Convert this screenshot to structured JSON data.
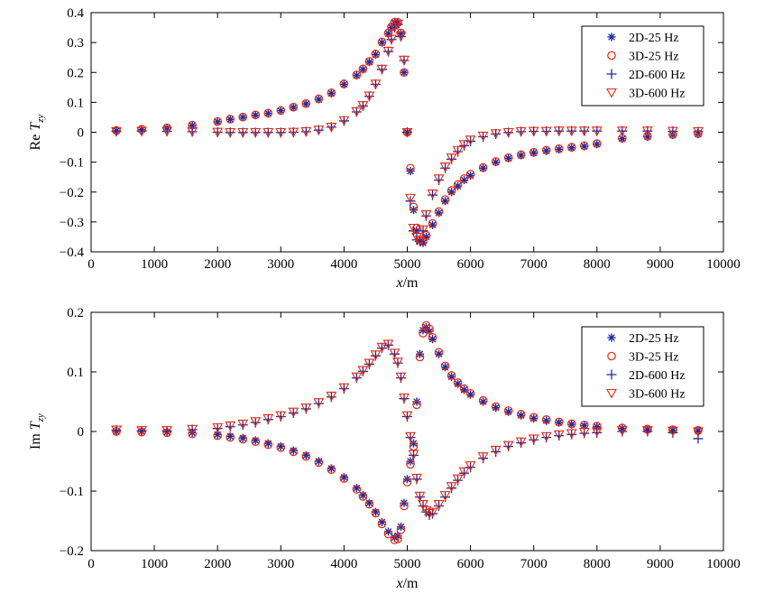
{
  "colors": {
    "blue": "#1f2d9e",
    "red": "#e8260f",
    "axis": "#000000"
  },
  "chart_data": [
    {
      "type": "scatter",
      "ylabel_main": "Re",
      "ylabel_sub": "zy",
      "xlabel_main": "x",
      "xlabel_unit": "/m",
      "xlim": [
        0,
        10000
      ],
      "ylim": [
        -0.4,
        0.4
      ],
      "xticks": [
        "0",
        "1000",
        "2000",
        "3000",
        "4000",
        "5000",
        "6000",
        "7000",
        "8000",
        "9000",
        "10000"
      ],
      "yticks": [
        "−0.4",
        "−0.3",
        "−0.2",
        "−0.1",
        "0",
        "0.1",
        "0.2",
        "0.3",
        "0.4"
      ],
      "legend_position": "top-right",
      "legend": [
        "2D-25 Hz",
        "3D-25 Hz",
        "2D-600 Hz",
        "3D-600 Hz"
      ],
      "x": [
        400,
        800,
        1200,
        1600,
        2000,
        2200,
        2400,
        2600,
        2800,
        3000,
        3200,
        3400,
        3600,
        3800,
        4000,
        4200,
        4300,
        4400,
        4500,
        4600,
        4700,
        4750,
        4800,
        4850,
        4900,
        4950,
        5000,
        5050,
        5100,
        5150,
        5200,
        5250,
        5300,
        5400,
        5500,
        5600,
        5700,
        5800,
        5900,
        6000,
        6200,
        6400,
        6600,
        6800,
        7000,
        7200,
        7400,
        7600,
        7800,
        8000,
        8400,
        8800,
        9200,
        9600
      ],
      "series": [
        {
          "name": "2D-25 Hz",
          "marker": "star",
          "color": "blue",
          "values": [
            0.005,
            0.009,
            0.014,
            0.022,
            0.035,
            0.043,
            0.05,
            0.057,
            0.063,
            0.072,
            0.083,
            0.095,
            0.11,
            0.13,
            0.16,
            0.19,
            0.21,
            0.235,
            0.26,
            0.3,
            0.33,
            0.35,
            0.365,
            0.365,
            0.33,
            0.2,
            0.0,
            -0.13,
            -0.26,
            -0.33,
            -0.365,
            -0.37,
            -0.35,
            -0.31,
            -0.27,
            -0.23,
            -0.2,
            -0.18,
            -0.16,
            -0.145,
            -0.12,
            -0.1,
            -0.087,
            -0.077,
            -0.069,
            -0.062,
            -0.057,
            -0.052,
            -0.047,
            -0.04,
            -0.022,
            -0.015,
            -0.009,
            -0.006
          ]
        },
        {
          "name": "3D-25 Hz",
          "marker": "circle",
          "color": "red",
          "values": [
            0.006,
            0.01,
            0.015,
            0.024,
            0.036,
            0.044,
            0.051,
            0.058,
            0.064,
            0.073,
            0.084,
            0.096,
            0.112,
            0.132,
            0.162,
            0.192,
            0.212,
            0.237,
            0.262,
            0.302,
            0.332,
            0.352,
            0.368,
            0.368,
            0.332,
            0.2,
            0.0,
            -0.12,
            -0.25,
            -0.32,
            -0.36,
            -0.365,
            -0.345,
            -0.305,
            -0.265,
            -0.225,
            -0.195,
            -0.175,
            -0.155,
            -0.14,
            -0.118,
            -0.098,
            -0.085,
            -0.075,
            -0.067,
            -0.06,
            -0.055,
            -0.05,
            -0.045,
            -0.038,
            -0.02,
            -0.013,
            -0.008,
            -0.005
          ]
        },
        {
          "name": "2D-600 Hz",
          "marker": "plus",
          "color": "blue",
          "values": [
            0.003,
            0.004,
            0.003,
            0.002,
            0.0,
            -0.001,
            -0.001,
            -0.001,
            -0.001,
            -0.001,
            0.0,
            0.002,
            0.007,
            0.017,
            0.038,
            0.068,
            0.088,
            0.12,
            0.16,
            0.21,
            0.27,
            0.31,
            0.35,
            0.36,
            0.32,
            0.24,
            0.0,
            -0.23,
            -0.33,
            -0.36,
            -0.365,
            -0.33,
            -0.28,
            -0.21,
            -0.16,
            -0.12,
            -0.09,
            -0.065,
            -0.045,
            -0.03,
            -0.015,
            -0.006,
            -0.001,
            0.002,
            0.003,
            0.003,
            0.004,
            0.004,
            0.004,
            0.004,
            0.004,
            0.004,
            0.003,
            0.002
          ]
        },
        {
          "name": "3D-600 Hz",
          "marker": "triangle-down",
          "color": "red",
          "values": [
            0.003,
            0.004,
            0.004,
            0.003,
            0.001,
            0.0,
            0.0,
            0.0,
            0.0,
            0.0,
            0.001,
            0.003,
            0.008,
            0.018,
            0.04,
            0.07,
            0.09,
            0.122,
            0.162,
            0.212,
            0.272,
            0.312,
            0.352,
            0.362,
            0.322,
            0.242,
            0.0,
            -0.22,
            -0.32,
            -0.35,
            -0.36,
            -0.325,
            -0.275,
            -0.205,
            -0.155,
            -0.115,
            -0.085,
            -0.06,
            -0.04,
            -0.025,
            -0.012,
            -0.004,
            0.0,
            0.003,
            0.004,
            0.004,
            0.005,
            0.005,
            0.005,
            0.005,
            0.005,
            0.005,
            0.004,
            0.003
          ]
        }
      ]
    },
    {
      "type": "scatter",
      "ylabel_main": "Im",
      "ylabel_sub": "zy",
      "xlabel_main": "x",
      "xlabel_unit": "/m",
      "xlim": [
        0,
        10000
      ],
      "ylim": [
        -0.2,
        0.2
      ],
      "xticks": [
        "0",
        "1000",
        "2000",
        "3000",
        "4000",
        "5000",
        "6000",
        "7000",
        "8000",
        "9000",
        "10000"
      ],
      "yticks": [
        "−0.2",
        "−0.1",
        "0",
        "0.1",
        "0.2"
      ],
      "legend_position": "top-right",
      "legend": [
        "2D-25 Hz",
        "3D-25 Hz",
        "2D-600 Hz",
        "3D-600 Hz"
      ],
      "x": [
        400,
        800,
        1200,
        1600,
        2000,
        2200,
        2400,
        2600,
        2800,
        3000,
        3200,
        3400,
        3600,
        3800,
        4000,
        4200,
        4300,
        4400,
        4500,
        4600,
        4700,
        4800,
        4850,
        4900,
        4950,
        5000,
        5050,
        5100,
        5150,
        5200,
        5250,
        5300,
        5350,
        5400,
        5500,
        5600,
        5700,
        5800,
        5900,
        6000,
        6200,
        6400,
        6600,
        6800,
        7000,
        7200,
        7400,
        7600,
        7800,
        8000,
        8400,
        8800,
        9200,
        9600
      ],
      "series": [
        {
          "name": "2D-25 Hz",
          "marker": "star",
          "color": "blue",
          "values": [
            0.0,
            0.0,
            -0.001,
            -0.002,
            -0.005,
            -0.008,
            -0.011,
            -0.015,
            -0.02,
            -0.025,
            -0.032,
            -0.04,
            -0.05,
            -0.062,
            -0.077,
            -0.095,
            -0.107,
            -0.12,
            -0.135,
            -0.152,
            -0.168,
            -0.178,
            -0.175,
            -0.16,
            -0.12,
            -0.08,
            -0.05,
            -0.02,
            0.05,
            0.13,
            0.17,
            0.175,
            0.168,
            0.155,
            0.13,
            0.108,
            0.092,
            0.08,
            0.07,
            0.062,
            0.05,
            0.04,
            0.033,
            0.027,
            0.022,
            0.018,
            0.015,
            0.012,
            0.01,
            0.008,
            0.005,
            0.003,
            0.002,
            0.001
          ]
        },
        {
          "name": "3D-25 Hz",
          "marker": "circle",
          "color": "red",
          "values": [
            0.0,
            -0.001,
            -0.002,
            -0.004,
            -0.007,
            -0.01,
            -0.013,
            -0.017,
            -0.022,
            -0.027,
            -0.034,
            -0.042,
            -0.052,
            -0.064,
            -0.079,
            -0.097,
            -0.109,
            -0.122,
            -0.137,
            -0.155,
            -0.172,
            -0.182,
            -0.18,
            -0.165,
            -0.125,
            -0.085,
            -0.055,
            -0.025,
            0.045,
            0.125,
            0.165,
            0.178,
            0.172,
            0.158,
            0.133,
            0.11,
            0.094,
            0.082,
            0.072,
            0.064,
            0.052,
            0.042,
            0.035,
            0.029,
            0.024,
            0.02,
            0.016,
            0.013,
            0.011,
            0.009,
            0.006,
            0.004,
            0.003,
            0.002
          ]
        },
        {
          "name": "2D-600 Hz",
          "marker": "plus",
          "color": "blue",
          "values": [
            0.002,
            0.001,
            0.001,
            0.003,
            0.005,
            0.008,
            0.011,
            0.015,
            0.02,
            0.025,
            0.031,
            0.038,
            0.047,
            0.058,
            0.072,
            0.09,
            0.101,
            0.113,
            0.127,
            0.14,
            0.145,
            0.13,
            0.115,
            0.09,
            0.055,
            0.025,
            -0.01,
            -0.04,
            -0.08,
            -0.11,
            -0.125,
            -0.135,
            -0.14,
            -0.138,
            -0.125,
            -0.11,
            -0.095,
            -0.082,
            -0.07,
            -0.06,
            -0.045,
            -0.034,
            -0.025,
            -0.019,
            -0.014,
            -0.01,
            -0.007,
            -0.005,
            -0.003,
            -0.002,
            0.0,
            0.0,
            -0.002,
            -0.012
          ]
        },
        {
          "name": "3D-600 Hz",
          "marker": "triangle-down",
          "color": "red",
          "values": [
            0.003,
            0.002,
            0.002,
            0.004,
            0.007,
            0.01,
            0.013,
            0.017,
            0.022,
            0.027,
            0.033,
            0.04,
            0.049,
            0.06,
            0.074,
            0.092,
            0.103,
            0.115,
            0.129,
            0.142,
            0.147,
            0.132,
            0.117,
            0.092,
            0.057,
            0.027,
            -0.008,
            -0.038,
            -0.078,
            -0.108,
            -0.122,
            -0.132,
            -0.137,
            -0.135,
            -0.122,
            -0.107,
            -0.092,
            -0.079,
            -0.067,
            -0.057,
            -0.042,
            -0.031,
            -0.023,
            -0.017,
            -0.012,
            -0.008,
            -0.005,
            -0.003,
            -0.001,
            0.0,
            0.002,
            0.002,
            0.001,
            0.0
          ]
        }
      ]
    }
  ]
}
